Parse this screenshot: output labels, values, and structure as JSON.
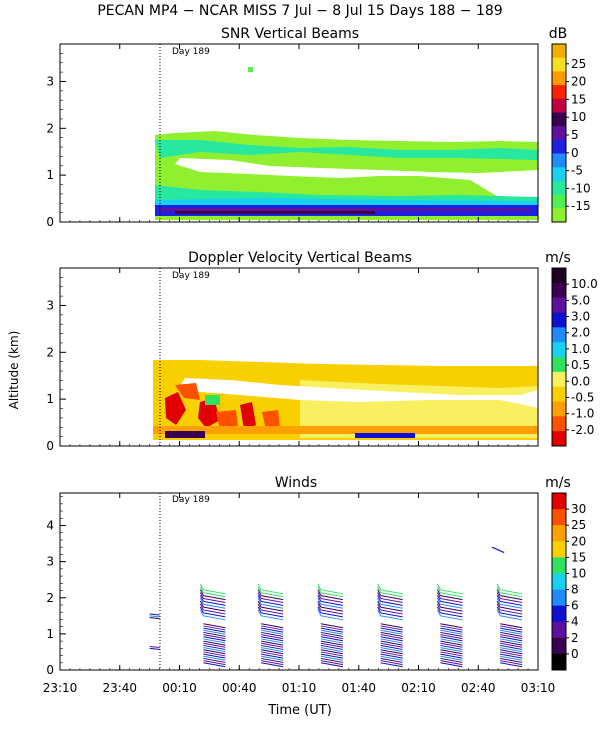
{
  "header": {
    "title": "PECAN MP4 − NCAR MISS   7 Jul −  8 Jul 15 Days 188 − 189"
  },
  "axes": {
    "ylabel": "Altitude (km)",
    "xlabel": "Time (UT)",
    "day_marker": "Day 189"
  },
  "x_ticks": [
    "23:10",
    "23:40",
    "00:10",
    "00:40",
    "01:10",
    "01:40",
    "02:10",
    "02:40",
    "03:10"
  ],
  "chart_data": [
    {
      "type": "heatmap",
      "title": "SNR Vertical Beams",
      "units": "dB",
      "ylim": [
        0,
        3.8
      ],
      "y_ticks": [
        0,
        1,
        2,
        3
      ],
      "colorbar": {
        "labels": [
          "25",
          "20",
          "15",
          "10",
          "5",
          "0",
          "-5",
          "-10",
          "-15"
        ],
        "colors": [
          "#f0b000",
          "#f8e020",
          "#ff9a00",
          "#ff2000",
          "#c00040",
          "#3a0050",
          "#6010a0",
          "#2020e0",
          "#1e8cff",
          "#18d0f0",
          "#28e8a0",
          "#50f050",
          "#90f030"
        ]
      }
    },
    {
      "type": "heatmap",
      "title": "Doppler Velocity Vertical Beams",
      "units": "m/s",
      "ylim": [
        0,
        3.8
      ],
      "y_ticks": [
        0,
        1,
        2,
        3
      ],
      "colorbar": {
        "labels": [
          "10.0",
          "5.0",
          "3.0",
          "2.0",
          "1.0",
          "0.5",
          "0.0",
          "-0.5",
          "-1.0",
          "-2.0"
        ],
        "colors": [
          "#200020",
          "#3a0050",
          "#6010a0",
          "#1010d0",
          "#1e8cff",
          "#18d0f0",
          "#30e060",
          "#f8f060",
          "#f8d000",
          "#ffa000",
          "#ff5000",
          "#e00000"
        ]
      }
    },
    {
      "type": "scatter",
      "title": "Winds",
      "units": "m/s",
      "ylim": [
        0,
        4.9
      ],
      "y_ticks": [
        0,
        1,
        2,
        3,
        4
      ],
      "colorbar": {
        "labels": [
          "30",
          "25",
          "20",
          "15",
          "10",
          "8",
          "6",
          "4",
          "2",
          "0"
        ],
        "colors": [
          "#e00000",
          "#ff5000",
          "#ffa000",
          "#f8d000",
          "#30e060",
          "#18d0f0",
          "#1e8cff",
          "#1010d0",
          "#6010a0",
          "#3a0050",
          "#000000"
        ]
      },
      "profile_times_utc": [
        "23:55",
        "00:22",
        "00:51",
        "01:21",
        "01:51",
        "02:21",
        "02:51"
      ]
    }
  ]
}
